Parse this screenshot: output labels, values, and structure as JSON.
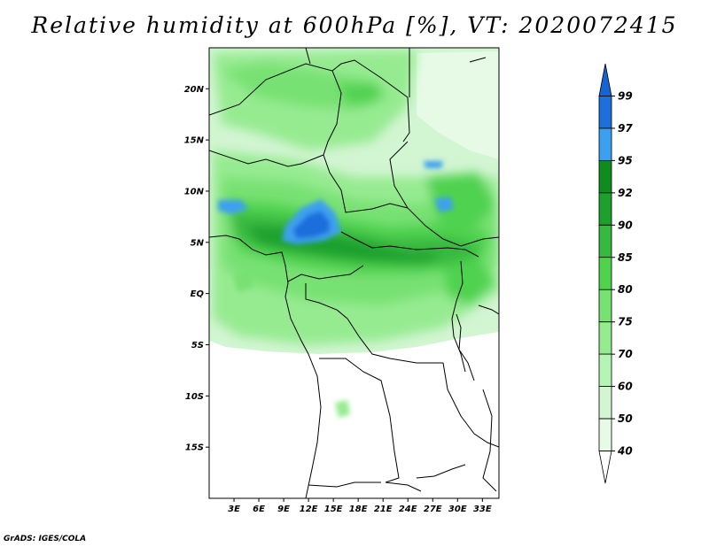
{
  "title": "Relative humidity at 600hPa [%], VT: 2020072415",
  "credit": "GrADS: IGES/COLA",
  "map": {
    "lon_range": [
      0,
      35
    ],
    "lat_range": [
      -20,
      24
    ],
    "lat_ticks": [
      {
        "value": 20,
        "label": "20N"
      },
      {
        "value": 15,
        "label": "15N"
      },
      {
        "value": 10,
        "label": "10N"
      },
      {
        "value": 5,
        "label": "5N"
      },
      {
        "value": 0,
        "label": "EQ"
      },
      {
        "value": -5,
        "label": "5S"
      },
      {
        "value": -10,
        "label": "10S"
      },
      {
        "value": -15,
        "label": "15S"
      }
    ],
    "lon_ticks": [
      {
        "value": 3,
        "label": "3E"
      },
      {
        "value": 6,
        "label": "6E"
      },
      {
        "value": 9,
        "label": "9E"
      },
      {
        "value": 12,
        "label": "12E"
      },
      {
        "value": 15,
        "label": "15E"
      },
      {
        "value": 18,
        "label": "18E"
      },
      {
        "value": 21,
        "label": "21E"
      },
      {
        "value": 24,
        "label": "24E"
      },
      {
        "value": 27,
        "label": "27E"
      },
      {
        "value": 30,
        "label": "30E"
      },
      {
        "value": 33,
        "label": "33E"
      }
    ]
  },
  "colorbar": {
    "levels": [
      "99",
      "97",
      "95",
      "92",
      "90",
      "85",
      "80",
      "75",
      "70",
      "60",
      "50",
      "40"
    ],
    "colors": [
      "#1464d2",
      "#1e6edc",
      "#3ca0f0",
      "#0f8c1e",
      "#1ea02d",
      "#37b93f",
      "#50d250",
      "#78e173",
      "#96eb91",
      "#b4f5b4",
      "#d2f5d2",
      "#e6fae6",
      "#ffffff"
    ]
  }
}
